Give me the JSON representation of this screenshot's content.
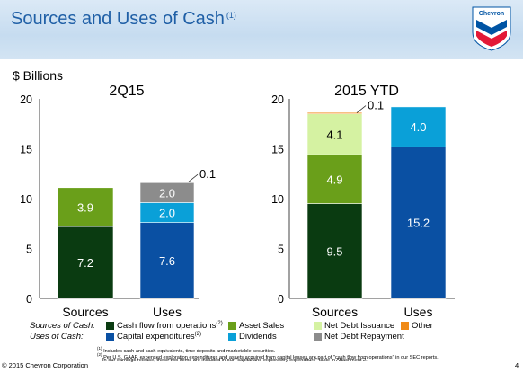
{
  "slide": {
    "title": "Sources and Uses of Cash",
    "title_note": "(1)",
    "unit_label": "$ Billions",
    "copyright": "© 2015 Chevron Corporation",
    "page_number": "4"
  },
  "logo": {
    "text": "Chevron",
    "colors": {
      "blue": "#0054a4",
      "red": "#e31937"
    }
  },
  "colors": {
    "cash_flow_from_operations": "#0a3b11",
    "asset_sales": "#6a9f1a",
    "net_debt_issuance": "#d5f2a2",
    "other": "#f08a17",
    "capital_expenditures": "#0a50a3",
    "dividends": "#0aa0d8",
    "net_debt_repayment": "#8c8c8c"
  },
  "legend": {
    "sources_caption": "Sources of Cash:",
    "uses_caption": "Uses of Cash:",
    "items": {
      "cash_flow": "Cash flow from operations",
      "cash_flow_note": "(2)",
      "asset_sales": "Asset Sales",
      "net_debt_issuance": "Net Debt Issuance",
      "other": "Other",
      "capex": "Capital expenditures",
      "capex_note": "(2)",
      "dividends": "Dividends",
      "net_debt_repayment": "Net Debt Repayment"
    }
  },
  "footnotes": {
    "note1_mark": "(1)",
    "note1": "Includes cash and cash equivalents, time deposits and marketable securities.",
    "note2_mark": "(2)",
    "note2_line1": "Per U.S. GAAP, expensed exploration expenditures and assets acquired from capital leases are part of \"cash flow from operations\" in our SEC reports.",
    "note2_line2": "In our earnings release, these two items are included in our \"capital and exploratory expenditure\" table in Attachment 2."
  },
  "chart_data": [
    {
      "type": "bar",
      "stacked": true,
      "title": "2Q15",
      "ylabel": "$ Billions",
      "ylim": [
        0,
        20
      ],
      "yticks": [
        0,
        5,
        10,
        15,
        20
      ],
      "categories": [
        "Sources",
        "Uses"
      ],
      "stacks": [
        {
          "category": "Sources",
          "segments": [
            {
              "name": "Cash flow from operations",
              "value": 7.2,
              "label": "7.2"
            },
            {
              "name": "Asset Sales",
              "value": 3.9,
              "label": "3.9"
            }
          ]
        },
        {
          "category": "Uses",
          "segments": [
            {
              "name": "Capital expenditures",
              "value": 7.6,
              "label": "7.6"
            },
            {
              "name": "Dividends",
              "value": 2.0,
              "label": "2.0"
            },
            {
              "name": "Net Debt Repayment",
              "value": 2.0,
              "label": "2.0"
            },
            {
              "name": "Other",
              "value": 0.1,
              "label": "0.1"
            }
          ]
        }
      ]
    },
    {
      "type": "bar",
      "stacked": true,
      "title": "2015 YTD",
      "ylabel": "$ Billions",
      "ylim": [
        0,
        20
      ],
      "yticks": [
        0,
        5,
        10,
        15,
        20
      ],
      "categories": [
        "Sources",
        "Uses"
      ],
      "stacks": [
        {
          "category": "Sources",
          "segments": [
            {
              "name": "Cash flow from operations",
              "value": 9.5,
              "label": "9.5"
            },
            {
              "name": "Asset Sales",
              "value": 4.9,
              "label": "4.9"
            },
            {
              "name": "Net Debt Issuance",
              "value": 4.1,
              "label": "4.1"
            },
            {
              "name": "Other",
              "value": 0.1,
              "label": "0.1"
            }
          ]
        },
        {
          "category": "Uses",
          "segments": [
            {
              "name": "Capital expenditures",
              "value": 15.2,
              "label": "15.2"
            },
            {
              "name": "Dividends",
              "value": 4.0,
              "label": "4.0"
            }
          ]
        }
      ]
    }
  ]
}
